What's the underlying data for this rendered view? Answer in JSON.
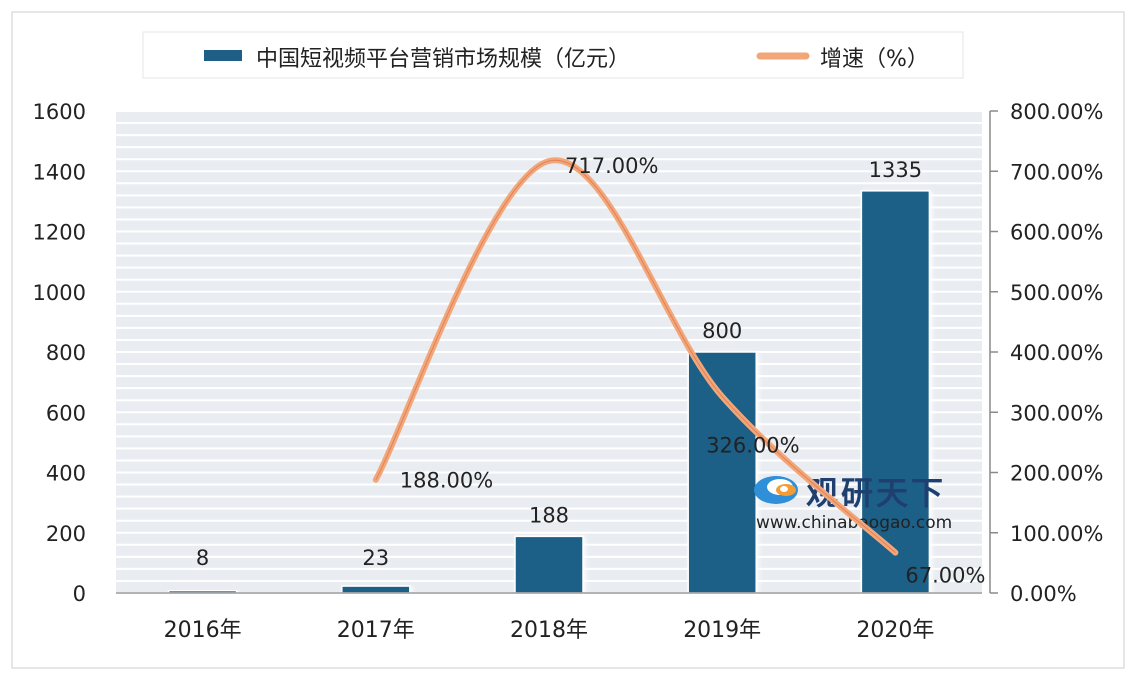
{
  "chart_data": {
    "type": "bar+line",
    "categories": [
      "2016年",
      "2017年",
      "2018年",
      "2019年",
      "2020年"
    ],
    "series": [
      {
        "name": "中国短视频平台营销市场规模（亿元）",
        "type": "bar",
        "axis": "left",
        "values": [
          8,
          23,
          188,
          800,
          1335
        ],
        "labels": [
          "8",
          "23",
          "188",
          "800",
          "1335"
        ]
      },
      {
        "name": "增速（%）",
        "type": "line",
        "axis": "right",
        "values": [
          null,
          188,
          717,
          326,
          67
        ],
        "labels": [
          "",
          "188.00%",
          "717.00%",
          "326.00%",
          "67.00%"
        ]
      }
    ],
    "y_left": {
      "min": 0,
      "max": 1600,
      "ticks": [
        "0",
        "200",
        "400",
        "600",
        "800",
        "1000",
        "1200",
        "1400",
        "1600"
      ]
    },
    "y_right": {
      "min": 0,
      "max": 800,
      "ticks": [
        "0.00%",
        "100.00%",
        "200.00%",
        "300.00%",
        "400.00%",
        "500.00%",
        "600.00%",
        "700.00%",
        "800.00%"
      ]
    },
    "grid": true,
    "legend_position": "top",
    "colors": {
      "bar": "#1f5f87",
      "line": "#f2a779",
      "plot_background": "#e9edf2",
      "gridline": "#ffffff"
    }
  },
  "watermark": {
    "brand": "观研天下",
    "url": "www.chinabaogao.com"
  }
}
